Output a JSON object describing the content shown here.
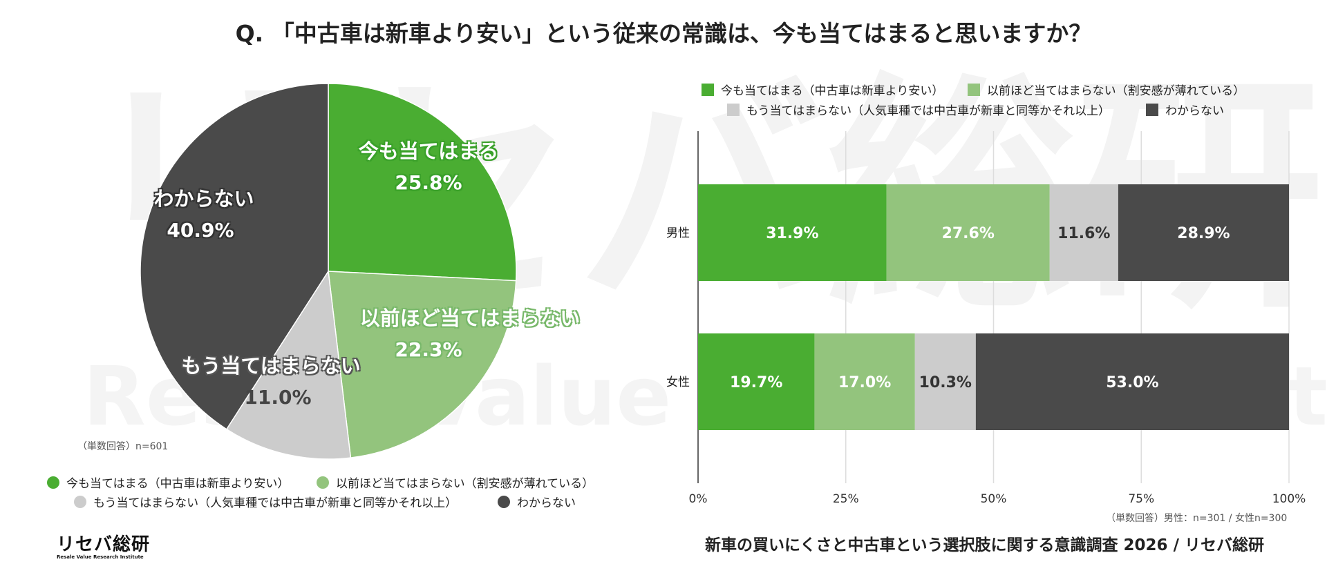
{
  "title": "Q. 「中古車は新車より安い」という従来の常識は、今も当てはまると思いますか？",
  "watermark": {
    "jp": "リセバ総研",
    "en": "Resale Value Research Institute"
  },
  "colors": {
    "green": "#4aad32",
    "light_green": "#93c47d",
    "light_grey": "#cccccc",
    "dark_grey": "#4a4a4a"
  },
  "pie": {
    "note": "（単数回答）n=601",
    "labels": [
      {
        "name": "今も当てはまる",
        "pct": "25.8%"
      },
      {
        "name": "以前ほど当てはまらない",
        "pct": "22.3%"
      },
      {
        "name": "もう当てはまらない",
        "pct": "11.0%"
      },
      {
        "name": "わからない",
        "pct": "40.9%"
      }
    ],
    "legend": [
      "今も当てはまる（中古車は新車より安い）",
      "以前ほど当てはまらない（割安感が薄れている）",
      "もう当てはまらない（人気車種では中古車が新車と同等かそれ以上）",
      "わからない"
    ]
  },
  "bar": {
    "legend": [
      "今も当てはまる（中古車は新車より安い）",
      "以前ほど当てはまらない（割安感が薄れている）",
      "もう当てはまらない（人気車種では中古車が新車と同等かそれ以上）",
      "わからない"
    ],
    "note": "（単数回答）男性：n=301 / 女性n=300",
    "x_ticks": [
      "0%",
      "25%",
      "50%",
      "75%",
      "100%"
    ]
  },
  "footer_title": "新車の買いにくさと中古車という選択肢に関する意識調査 2026 / リセバ総研",
  "logo": {
    "main": "リセバ総研",
    "sub": "Resale Value Research Institute"
  },
  "chart_data": [
    {
      "type": "pie",
      "title": "",
      "categories": [
        "今も当てはまる",
        "以前ほど当てはまらない",
        "もう当てはまらない",
        "わからない"
      ],
      "values": [
        25.8,
        22.3,
        11.0,
        40.9
      ],
      "colors": [
        "#4aad32",
        "#93c47d",
        "#cccccc",
        "#4a4a4a"
      ],
      "legend_position": "bottom"
    },
    {
      "type": "bar",
      "orientation": "horizontal",
      "stacked": true,
      "categories": [
        "男性",
        "女性"
      ],
      "series": [
        {
          "name": "今も当てはまる（中古車は新車より安い）",
          "values": [
            31.9,
            19.7
          ],
          "color": "#4aad32"
        },
        {
          "name": "以前ほど当てはまらない（割安感が薄れている）",
          "values": [
            27.6,
            17.0
          ],
          "color": "#93c47d"
        },
        {
          "name": "もう当てはまらない（人気車種では中古車が新車と同等かそれ以上）",
          "values": [
            11.6,
            10.3
          ],
          "color": "#cccccc"
        },
        {
          "name": "わからない",
          "values": [
            28.9,
            53.0
          ],
          "color": "#4a4a4a"
        }
      ],
      "xlim": [
        0,
        100
      ],
      "grid": true,
      "legend_position": "top"
    }
  ]
}
